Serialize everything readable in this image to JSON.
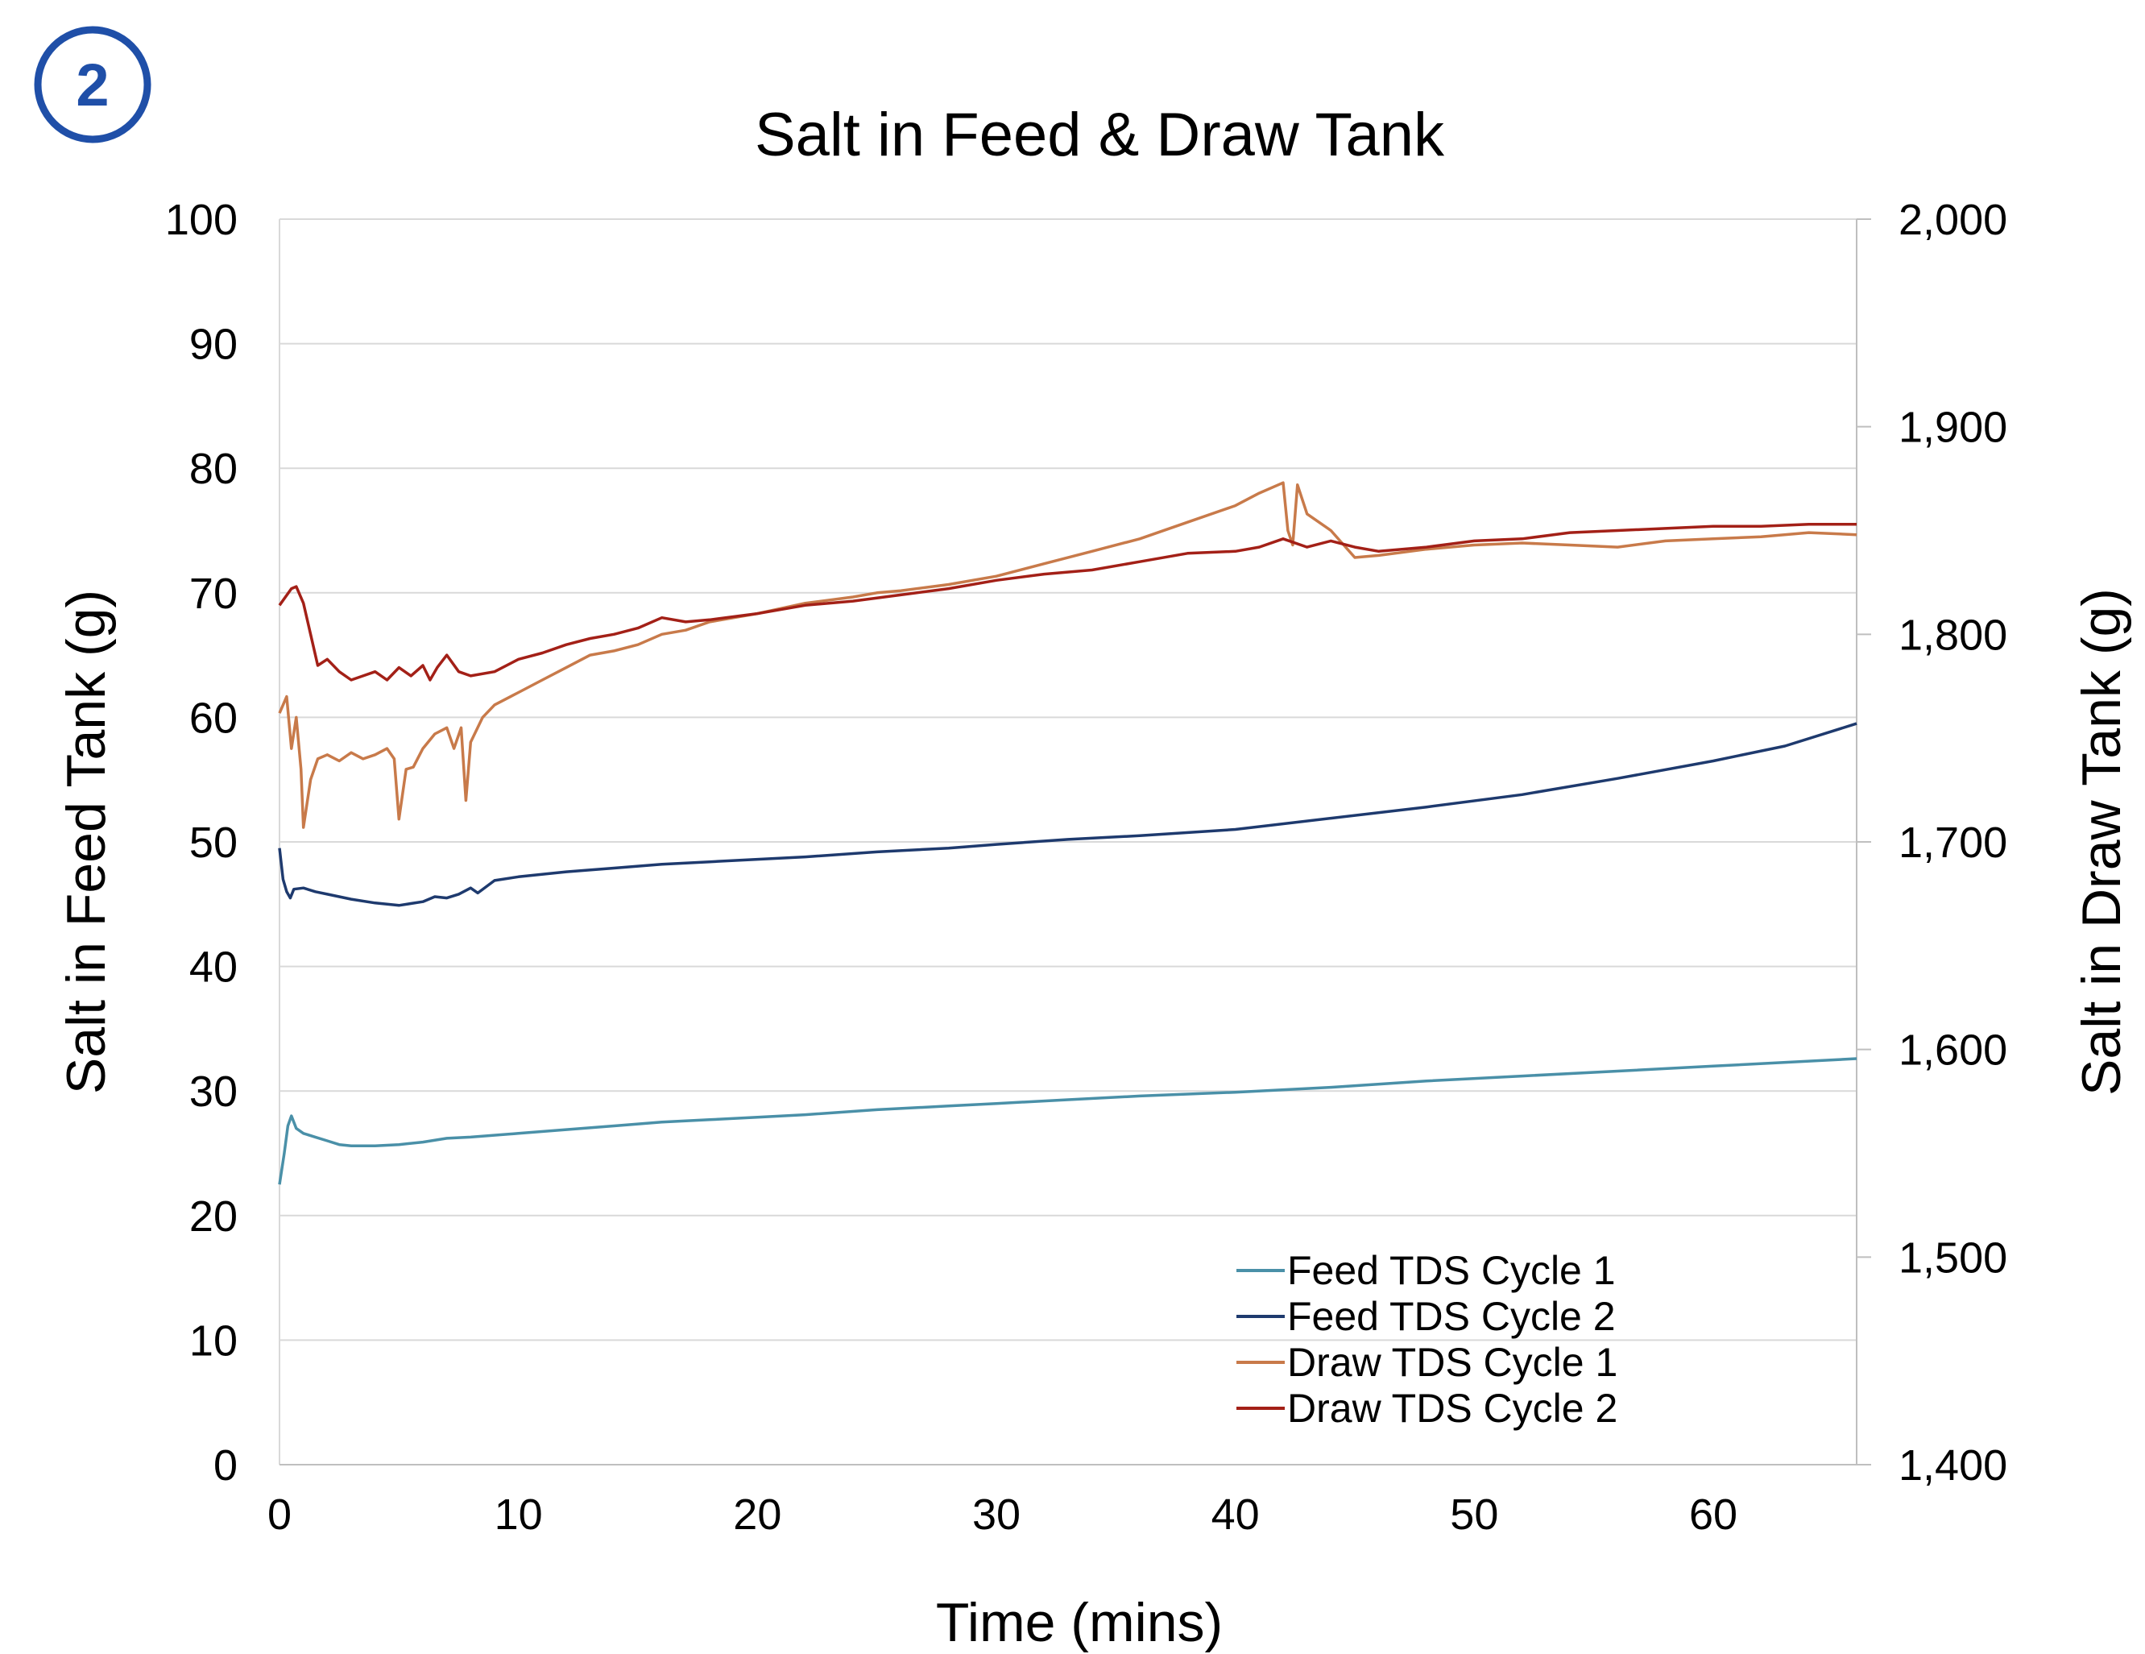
{
  "badge": {
    "label": "2",
    "color": "#1f4fa8"
  },
  "chart_data": {
    "type": "line",
    "title": "Salt in Feed & Draw Tank",
    "xlabel": "Time (mins)",
    "ylabel": "Salt in Feed Tank (g)",
    "y2label": "Salt in Draw Tank (g)",
    "xlim": [
      0,
      66
    ],
    "ylim": [
      0,
      100
    ],
    "y2lim": [
      1400,
      2000
    ],
    "x_ticks": [
      "0",
      "10",
      "20",
      "30",
      "40",
      "50",
      "60"
    ],
    "y_ticks": [
      "0",
      "10",
      "20",
      "30",
      "40",
      "50",
      "60",
      "70",
      "80",
      "90",
      "100"
    ],
    "y2_ticks": [
      "1,400",
      "1,500",
      "1,600",
      "1,700",
      "1,800",
      "1,900",
      "2,000"
    ],
    "grid": true,
    "legend_position": "bottom-right",
    "series": [
      {
        "name": "Feed TDS Cycle 1",
        "axis": "left",
        "color": "#4a90a8",
        "points": [
          [
            0,
            22.5
          ],
          [
            0.2,
            25
          ],
          [
            0.35,
            27.2
          ],
          [
            0.5,
            28
          ],
          [
            0.7,
            27
          ],
          [
            1,
            26.6
          ],
          [
            1.5,
            26.3
          ],
          [
            2,
            26
          ],
          [
            2.5,
            25.7
          ],
          [
            3,
            25.6
          ],
          [
            4,
            25.6
          ],
          [
            5,
            25.7
          ],
          [
            6,
            25.9
          ],
          [
            7,
            26.2
          ],
          [
            8,
            26.3
          ],
          [
            10,
            26.6
          ],
          [
            12,
            26.9
          ],
          [
            14,
            27.2
          ],
          [
            16,
            27.5
          ],
          [
            18,
            27.7
          ],
          [
            20,
            27.9
          ],
          [
            22,
            28.1
          ],
          [
            25,
            28.5
          ],
          [
            28,
            28.8
          ],
          [
            30,
            29
          ],
          [
            33,
            29.3
          ],
          [
            36,
            29.6
          ],
          [
            40,
            29.9
          ],
          [
            44,
            30.3
          ],
          [
            48,
            30.8
          ],
          [
            52,
            31.2
          ],
          [
            56,
            31.6
          ],
          [
            60,
            32
          ],
          [
            64,
            32.4
          ],
          [
            66,
            32.6
          ]
        ]
      },
      {
        "name": "Feed TDS Cycle 2",
        "axis": "left",
        "color": "#1e3a6e",
        "points": [
          [
            0,
            49.5
          ],
          [
            0.15,
            47
          ],
          [
            0.3,
            46
          ],
          [
            0.45,
            45.5
          ],
          [
            0.6,
            46.2
          ],
          [
            1,
            46.3
          ],
          [
            1.5,
            46
          ],
          [
            2,
            45.8
          ],
          [
            3,
            45.4
          ],
          [
            4,
            45.1
          ],
          [
            5,
            44.9
          ],
          [
            6,
            45.2
          ],
          [
            6.5,
            45.6
          ],
          [
            7,
            45.5
          ],
          [
            7.5,
            45.8
          ],
          [
            8,
            46.3
          ],
          [
            8.3,
            45.9
          ],
          [
            9,
            46.9
          ],
          [
            10,
            47.2
          ],
          [
            12,
            47.6
          ],
          [
            14,
            47.9
          ],
          [
            16,
            48.2
          ],
          [
            18,
            48.4
          ],
          [
            20,
            48.6
          ],
          [
            22,
            48.8
          ],
          [
            25,
            49.2
          ],
          [
            28,
            49.5
          ],
          [
            30,
            49.8
          ],
          [
            33,
            50.2
          ],
          [
            36,
            50.5
          ],
          [
            40,
            51
          ],
          [
            44,
            51.9
          ],
          [
            48,
            52.8
          ],
          [
            52,
            53.8
          ],
          [
            56,
            55.1
          ],
          [
            60,
            56.5
          ],
          [
            63,
            57.7
          ],
          [
            66,
            59.5
          ]
        ]
      },
      {
        "name": "Draw TDS Cycle 1",
        "axis": "right",
        "color": "#c87a4a",
        "points": [
          [
            0,
            1762
          ],
          [
            0.3,
            1770
          ],
          [
            0.5,
            1745
          ],
          [
            0.7,
            1760
          ],
          [
            0.9,
            1735
          ],
          [
            1.0,
            1707
          ],
          [
            1.3,
            1730
          ],
          [
            1.6,
            1740
          ],
          [
            2,
            1742
          ],
          [
            2.5,
            1739
          ],
          [
            3,
            1743
          ],
          [
            3.5,
            1740
          ],
          [
            4,
            1742
          ],
          [
            4.5,
            1745
          ],
          [
            4.8,
            1740
          ],
          [
            5,
            1711
          ],
          [
            5.3,
            1735
          ],
          [
            5.6,
            1736
          ],
          [
            6,
            1745
          ],
          [
            6.5,
            1752
          ],
          [
            7,
            1755
          ],
          [
            7.3,
            1745
          ],
          [
            7.6,
            1755
          ],
          [
            7.8,
            1720
          ],
          [
            8,
            1748
          ],
          [
            8.5,
            1760
          ],
          [
            9,
            1766
          ],
          [
            10,
            1772
          ],
          [
            11,
            1778
          ],
          [
            12,
            1784
          ],
          [
            13,
            1790
          ],
          [
            14,
            1792
          ],
          [
            15,
            1795
          ],
          [
            16,
            1800
          ],
          [
            17,
            1802
          ],
          [
            18,
            1806
          ],
          [
            20,
            1810
          ],
          [
            22,
            1815
          ],
          [
            24,
            1818
          ],
          [
            25,
            1820
          ],
          [
            26,
            1821
          ],
          [
            28,
            1824
          ],
          [
            30,
            1828
          ],
          [
            32,
            1834
          ],
          [
            34,
            1840
          ],
          [
            36,
            1846
          ],
          [
            38,
            1854
          ],
          [
            40,
            1862
          ],
          [
            41,
            1868
          ],
          [
            42,
            1873
          ],
          [
            42.2,
            1850
          ],
          [
            42.4,
            1843
          ],
          [
            42.6,
            1872
          ],
          [
            43,
            1858
          ],
          [
            44,
            1850
          ],
          [
            45,
            1837
          ],
          [
            46,
            1838
          ],
          [
            48,
            1841
          ],
          [
            50,
            1843
          ],
          [
            52,
            1844
          ],
          [
            54,
            1843
          ],
          [
            56,
            1842
          ],
          [
            58,
            1845
          ],
          [
            60,
            1846
          ],
          [
            62,
            1847
          ],
          [
            64,
            1849
          ],
          [
            66,
            1848
          ]
        ]
      },
      {
        "name": "Draw TDS Cycle 2",
        "axis": "right",
        "color": "#a32017",
        "points": [
          [
            0,
            1814
          ],
          [
            0.5,
            1822
          ],
          [
            0.7,
            1823
          ],
          [
            1,
            1815
          ],
          [
            1.3,
            1800
          ],
          [
            1.6,
            1785
          ],
          [
            2,
            1788
          ],
          [
            2.5,
            1782
          ],
          [
            3,
            1778
          ],
          [
            3.5,
            1780
          ],
          [
            4,
            1782
          ],
          [
            4.5,
            1778
          ],
          [
            5,
            1784
          ],
          [
            5.5,
            1780
          ],
          [
            6,
            1785
          ],
          [
            6.3,
            1778
          ],
          [
            6.6,
            1784
          ],
          [
            7,
            1790
          ],
          [
            7.5,
            1782
          ],
          [
            8,
            1780
          ],
          [
            9,
            1782
          ],
          [
            10,
            1788
          ],
          [
            11,
            1791
          ],
          [
            12,
            1795
          ],
          [
            13,
            1798
          ],
          [
            14,
            1800
          ],
          [
            15,
            1803
          ],
          [
            16,
            1808
          ],
          [
            17,
            1806
          ],
          [
            18,
            1807
          ],
          [
            20,
            1810
          ],
          [
            22,
            1814
          ],
          [
            24,
            1816
          ],
          [
            26,
            1819
          ],
          [
            28,
            1822
          ],
          [
            30,
            1826
          ],
          [
            32,
            1829
          ],
          [
            34,
            1831
          ],
          [
            36,
            1835
          ],
          [
            38,
            1839
          ],
          [
            40,
            1840
          ],
          [
            41,
            1842
          ],
          [
            42,
            1846
          ],
          [
            43,
            1842
          ],
          [
            44,
            1845
          ],
          [
            45,
            1842
          ],
          [
            46,
            1840
          ],
          [
            48,
            1842
          ],
          [
            50,
            1845
          ],
          [
            52,
            1846
          ],
          [
            54,
            1849
          ],
          [
            56,
            1850
          ],
          [
            58,
            1851
          ],
          [
            60,
            1852
          ],
          [
            62,
            1852
          ],
          [
            64,
            1853
          ],
          [
            66,
            1853
          ]
        ]
      }
    ]
  }
}
